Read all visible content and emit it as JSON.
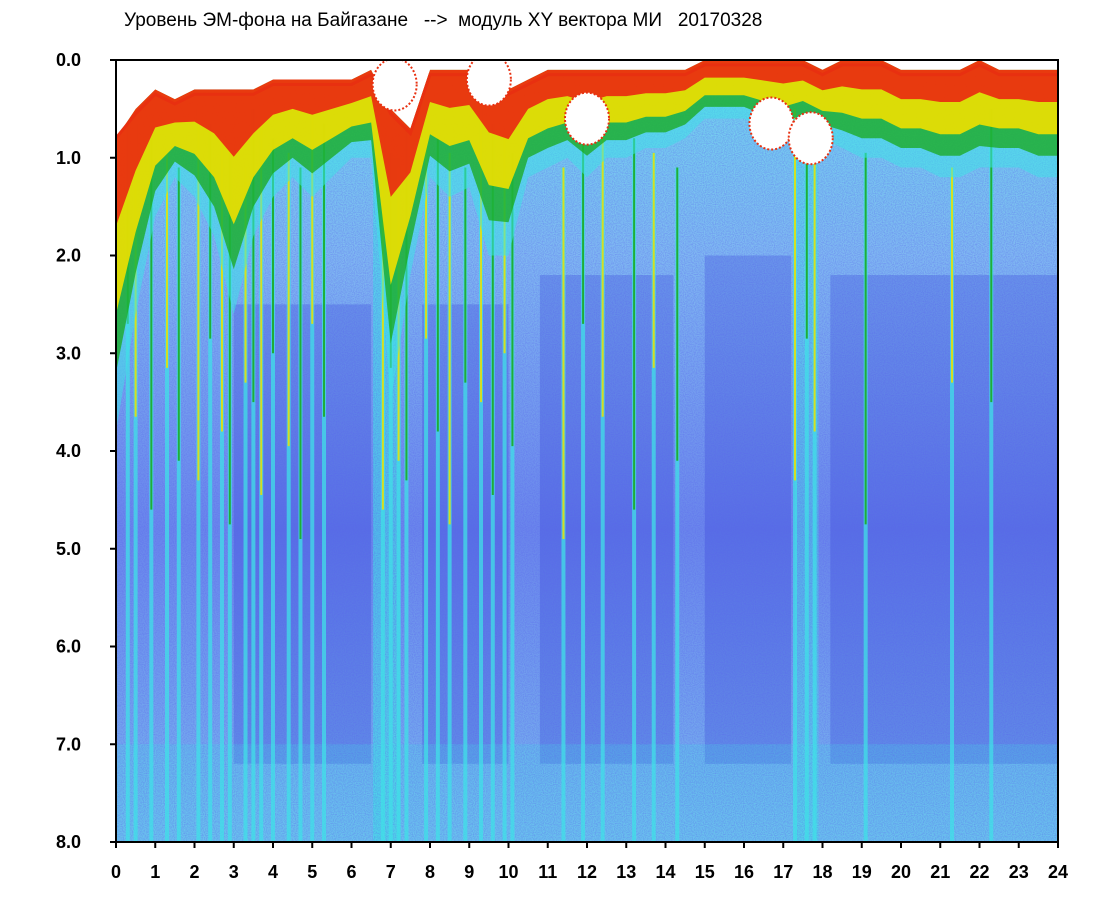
{
  "title": "Уровень ЭМ-фона на Байгазане   -->  модуль XY вектора МИ   20170328",
  "chart_data": {
    "type": "heatmap",
    "title": "Уровень ЭМ-фона на Байгазане   -->  модуль XY вектора МИ   20170328",
    "xlabel": "",
    "ylabel": "",
    "xlim": [
      0,
      24
    ],
    "ylim": [
      0.0,
      8.0
    ],
    "y_inverted": true,
    "x_ticks": [
      "0",
      "1",
      "2",
      "3",
      "4",
      "5",
      "6",
      "7",
      "8",
      "9",
      "10",
      "11",
      "12",
      "13",
      "14",
      "15",
      "16",
      "17",
      "18",
      "19",
      "20",
      "21",
      "22",
      "23",
      "24"
    ],
    "y_ticks": [
      "0.0",
      "1.0",
      "2.0",
      "3.0",
      "4.0",
      "5.0",
      "6.0",
      "7.0",
      "8.0"
    ],
    "grid": false,
    "colors": {
      "scale": [
        "#1a1acc",
        "#4d6cf0",
        "#40e0e8",
        "#1aa81a",
        "#f0e000",
        "#e83010",
        "#ffffff"
      ],
      "background": "#7fb0f0",
      "axis": "#000000"
    },
    "band_top_edge": {
      "x": [
        0,
        0.5,
        1,
        1.5,
        2,
        2.5,
        3,
        3.5,
        4,
        4.5,
        5,
        5.5,
        6,
        6.5,
        7,
        7.5,
        8,
        8.5,
        9,
        9.5,
        10,
        10.5,
        11,
        11.5,
        12,
        12.5,
        13,
        13.5,
        14,
        14.5,
        15,
        15.5,
        16,
        16.5,
        17,
        17.5,
        18,
        18.5,
        19,
        19.5,
        20,
        20.5,
        21,
        21.5,
        22,
        22.5,
        23,
        23.5,
        24
      ],
      "y": [
        0.8,
        0.5,
        0.3,
        0.4,
        0.3,
        0.3,
        0.3,
        0.3,
        0.2,
        0.2,
        0.2,
        0.2,
        0.2,
        0.1,
        0.5,
        0.7,
        0.1,
        0.1,
        0.1,
        0.2,
        0.3,
        0.2,
        0.1,
        0.1,
        0.1,
        0.1,
        0.1,
        0.1,
        0.1,
        0.1,
        0.0,
        0.0,
        0.0,
        0.0,
        0.0,
        0.0,
        0.1,
        0.0,
        0.0,
        0.0,
        0.1,
        0.1,
        0.1,
        0.1,
        0.0,
        0.1,
        0.1,
        0.1,
        0.1
      ]
    },
    "band_depth": {
      "x": [
        0,
        0.5,
        1,
        1.5,
        2,
        2.5,
        3,
        3.5,
        4,
        4.5,
        5,
        5.5,
        6,
        6.5,
        7,
        7.5,
        8,
        8.5,
        9,
        9.5,
        10,
        10.5,
        11,
        11.5,
        12,
        12.5,
        13,
        13.5,
        14,
        14.5,
        15,
        15.5,
        16,
        16.5,
        17,
        17.5,
        18,
        18.5,
        19,
        19.5,
        20,
        20.5,
        21,
        21.5,
        22,
        22.5,
        23,
        23.5,
        24
      ],
      "y": [
        3.8,
        2.6,
        1.6,
        1.2,
        1.4,
        1.8,
        2.6,
        1.8,
        1.4,
        1.2,
        1.4,
        1.2,
        1.0,
        1.0,
        3.5,
        2.2,
        1.2,
        1.4,
        1.3,
        2.0,
        2.0,
        1.2,
        1.1,
        1.0,
        1.2,
        1.0,
        1.0,
        0.9,
        0.9,
        0.8,
        0.6,
        0.6,
        0.6,
        0.7,
        0.8,
        0.7,
        0.8,
        0.9,
        1.0,
        1.0,
        1.1,
        1.1,
        1.2,
        1.2,
        1.1,
        1.1,
        1.1,
        1.2,
        1.2
      ]
    },
    "streaks": [
      0.3,
      0.5,
      0.9,
      1.3,
      1.6,
      2.1,
      2.4,
      2.7,
      2.9,
      3.3,
      3.5,
      3.7,
      4.0,
      4.4,
      4.7,
      5.0,
      5.3,
      6.8,
      7.0,
      7.2,
      7.4,
      7.9,
      8.2,
      8.5,
      8.9,
      9.3,
      9.6,
      9.9,
      10.1,
      11.4,
      11.9,
      12.4,
      13.2,
      13.7,
      14.3,
      17.3,
      17.6,
      17.8,
      19.1,
      21.3,
      22.3
    ],
    "white_patches": [
      {
        "x": 12.0,
        "y": 0.6
      },
      {
        "x": 16.7,
        "y": 0.65
      },
      {
        "x": 17.7,
        "y": 0.8
      },
      {
        "x": 7.1,
        "y": 0.25
      },
      {
        "x": 9.5,
        "y": 0.2
      }
    ]
  }
}
